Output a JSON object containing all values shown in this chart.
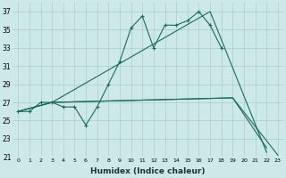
{
  "xlabel": "Humidex (Indice chaleur)",
  "bg_color": "#cce8e8",
  "grid_color": "#aacece",
  "line_color": "#1a6b5a",
  "xlim": [
    -0.5,
    23.5
  ],
  "ylim": [
    21,
    38
  ],
  "yticks": [
    21,
    23,
    25,
    27,
    29,
    31,
    33,
    35,
    37
  ],
  "xticks": [
    0,
    1,
    2,
    3,
    4,
    5,
    6,
    7,
    8,
    9,
    10,
    11,
    12,
    13,
    14,
    15,
    16,
    17,
    18,
    19,
    20,
    21,
    22,
    23
  ],
  "series": [
    {
      "x": [
        0,
        1,
        2,
        3,
        4,
        5,
        6,
        7,
        8,
        9,
        10,
        11,
        12,
        13,
        14,
        15,
        16,
        17,
        18
      ],
      "y": [
        26,
        26,
        27,
        27,
        26.5,
        26.5,
        24.5,
        26.5,
        29,
        31.5,
        35.2,
        36.5,
        33,
        35.5,
        35.5,
        36,
        37,
        35.5,
        33
      ],
      "marker": "+"
    },
    {
      "x": [
        0,
        3,
        17,
        22
      ],
      "y": [
        26,
        27,
        37,
        21.5
      ],
      "marker": null
    },
    {
      "x": [
        0,
        3,
        19,
        22
      ],
      "y": [
        26,
        27,
        27.5,
        22
      ],
      "marker": null
    },
    {
      "x": [
        0,
        3,
        19,
        23
      ],
      "y": [
        26,
        27,
        27.5,
        21.2
      ],
      "marker": null
    }
  ]
}
